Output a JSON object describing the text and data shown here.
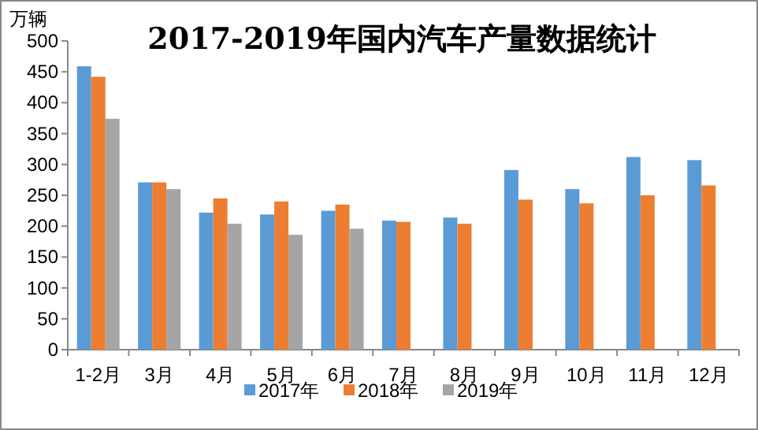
{
  "chart_data": {
    "type": "bar",
    "title": "2017-2019年国内汽车产量数据统计",
    "ylabel": "万辆",
    "categories": [
      "1-2月",
      "3月",
      "4月",
      "5月",
      "6月",
      "7月",
      "8月",
      "9月",
      "10月",
      "11月",
      "12月"
    ],
    "series": [
      {
        "name": "2017年",
        "color": "#5b9bd5",
        "values": [
          459,
          271,
          222,
          219,
          225,
          209,
          214,
          291,
          260,
          312,
          307
        ]
      },
      {
        "name": "2018年",
        "color": "#ed7d31",
        "values": [
          442,
          271,
          245,
          240,
          235,
          207,
          204,
          243,
          237,
          250,
          266
        ]
      },
      {
        "name": "2019年",
        "color": "#a5a5a5",
        "values": [
          374,
          260,
          204,
          186,
          196,
          null,
          null,
          null,
          null,
          null,
          null
        ]
      }
    ],
    "ylim": [
      0,
      500
    ],
    "yticks": [
      0,
      50,
      100,
      150,
      200,
      250,
      300,
      350,
      400,
      450,
      500
    ],
    "grid": false,
    "legend": "bottom"
  }
}
